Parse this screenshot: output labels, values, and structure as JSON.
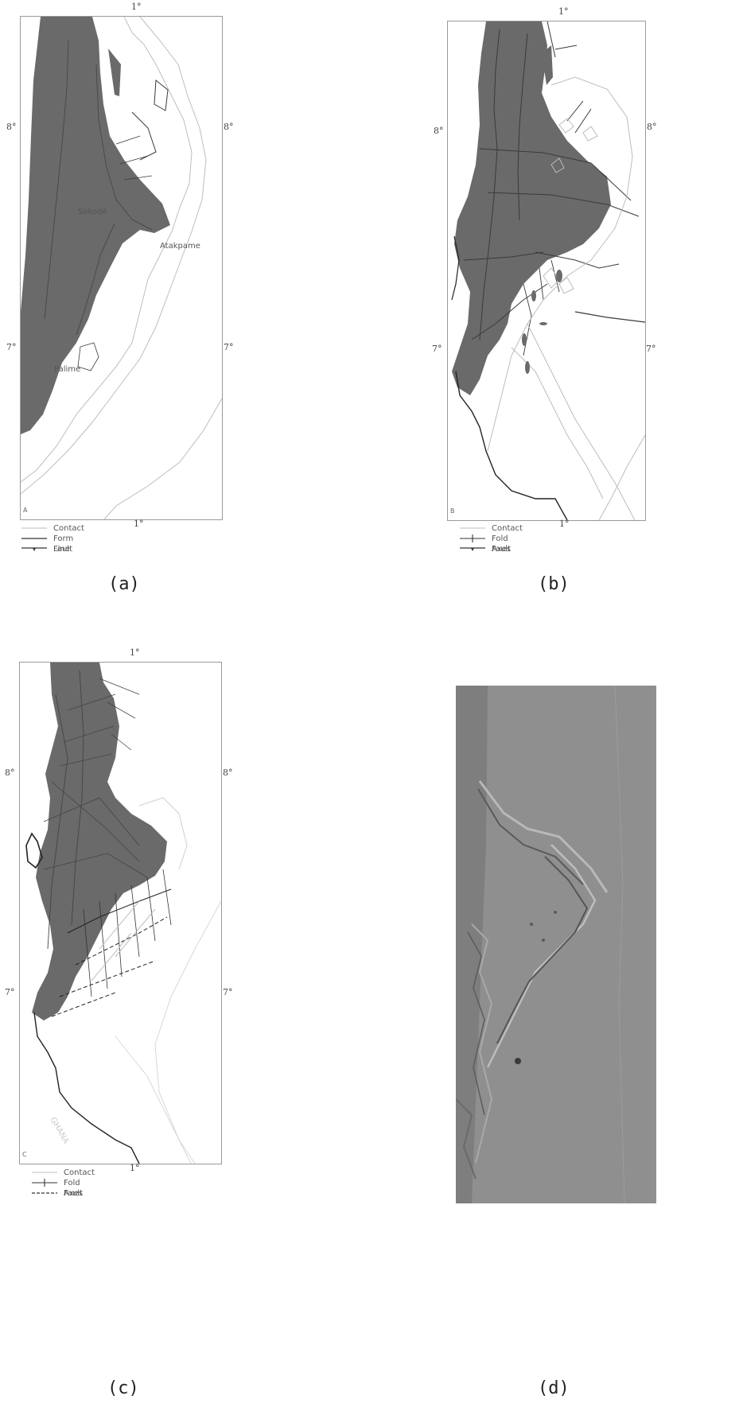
{
  "panel_a": {
    "corner_label": "A",
    "top_degree": "1°",
    "bottom_degree": "1°",
    "lat_8_left": "8°",
    "lat_8_right": "8°",
    "lat_7_left": "7°",
    "lat_7_right": "7°",
    "places": [
      "Sokodé",
      "Atakpame",
      "Palime"
    ],
    "legend": [
      "Contact",
      "Form Line",
      "Fault"
    ],
    "caption": "(a)"
  },
  "panel_b": {
    "corner_label": "B",
    "top_degree": "1°",
    "bottom_degree": "1°",
    "lat_8_left": "8°",
    "lat_8_right": "8°",
    "lat_7_left": "7°",
    "lat_7_right": "7°",
    "legend": [
      "Contact",
      "Fold Axes",
      "Fault"
    ],
    "caption": "(b)"
  },
  "panel_c": {
    "corner_label": "C",
    "top_degree": "1°",
    "bottom_degree": "1°",
    "lat_8_left": "8°",
    "lat_8_right": "8°",
    "lat_7_left": "7°",
    "lat_7_right": "7°",
    "places": [
      "GHANA"
    ],
    "legend": [
      "Contact",
      "Fold Axes",
      "Fault"
    ],
    "caption": "(c)"
  },
  "panel_d": {
    "caption": "(d)"
  },
  "colors": {
    "belt_fill": "#6a6a6a",
    "contact_line": "#bdbdbd",
    "feature_line": "#3a3a3a",
    "coast_line": "#222222",
    "photo_tone": "#8f8f8f"
  }
}
